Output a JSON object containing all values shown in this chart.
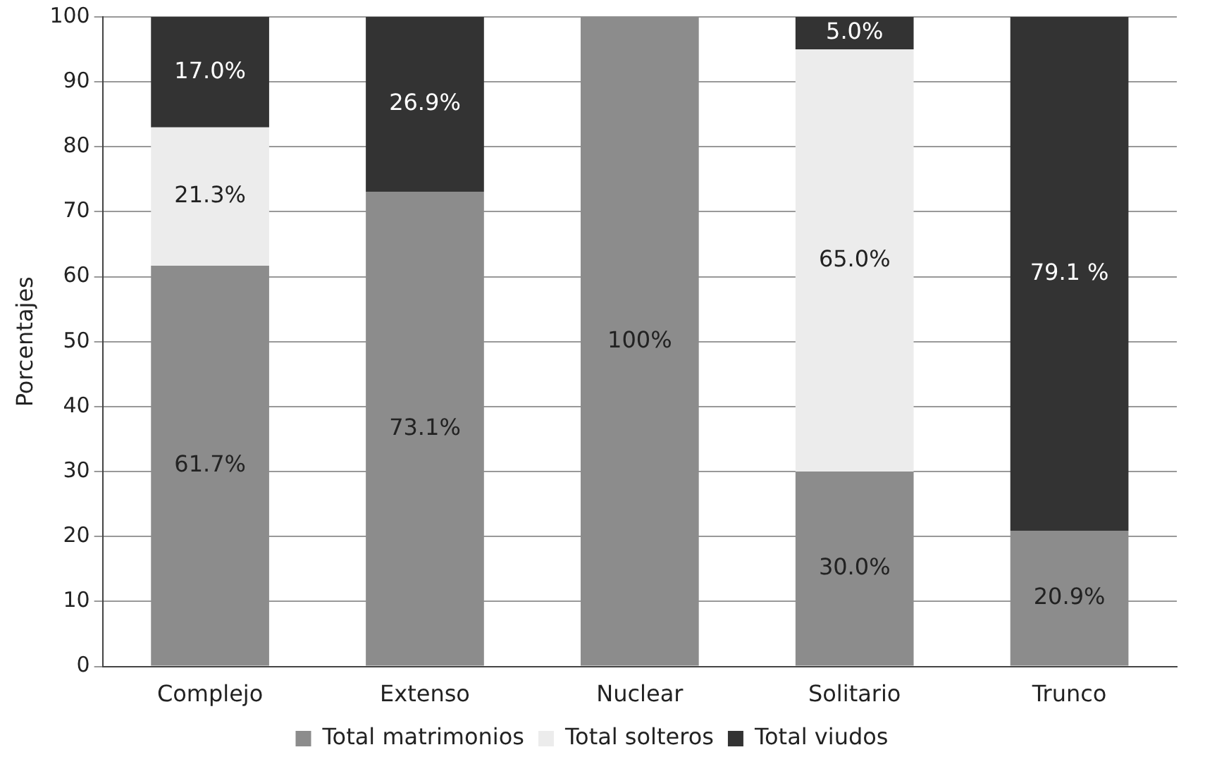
{
  "chart_data": {
    "type": "bar",
    "stacked": true,
    "ylabel": "Porcentajes",
    "categories": [
      "Complejo",
      "Extenso",
      "Nuclear",
      "Solitario",
      "Trunco"
    ],
    "series": [
      {
        "name": "Total matrimonios",
        "color": "#8c8c8c",
        "values": [
          61.7,
          73.1,
          100,
          30.0,
          20.9
        ],
        "value_labels": [
          "61.7%",
          "73.1%",
          "100%",
          "30.0%",
          "20.9%"
        ]
      },
      {
        "name": "Total solteros",
        "color": "#ececec",
        "values": [
          21.3,
          null,
          null,
          65.0,
          null
        ],
        "value_labels": [
          "21.3%",
          null,
          null,
          "65.0%",
          null
        ]
      },
      {
        "name": "Total viudos",
        "color": "#333333",
        "values": [
          17.0,
          26.9,
          null,
          5.0,
          79.1
        ],
        "value_labels": [
          "17.0%",
          "26.9%",
          null,
          "5.0%",
          "79.1 %"
        ]
      }
    ],
    "ylim": [
      0,
      100
    ],
    "yticks": [
      0,
      10,
      20,
      30,
      40,
      50,
      60,
      70,
      80,
      90,
      100
    ],
    "grid": "y",
    "legend": "bottom"
  }
}
